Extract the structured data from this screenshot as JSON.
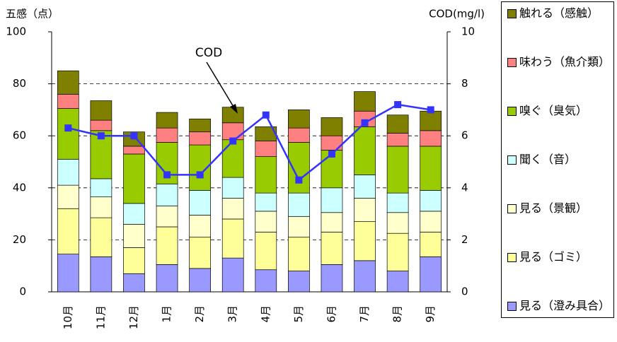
{
  "chart_data": {
    "type": "bar",
    "stacked": true,
    "ylabel": "五感（点）",
    "y2label": "COD(mg/l)",
    "categories": [
      "10月",
      "11月",
      "12月",
      "1月",
      "2月",
      "3月",
      "4月",
      "5月",
      "6月",
      "7月",
      "8月",
      "9月"
    ],
    "series": [
      {
        "name": "見る（澄み具合）",
        "color": "#9999ff",
        "values": [
          14.5,
          13.5,
          7,
          10.5,
          9,
          13,
          8.5,
          8,
          10.5,
          12,
          8,
          13.5
        ]
      },
      {
        "name": "見る（ゴミ）",
        "color": "#ffff99",
        "values": [
          17.5,
          15,
          10,
          14.5,
          12,
          15,
          14.5,
          13,
          12.5,
          15,
          14.5,
          9.5
        ]
      },
      {
        "name": "見る（景観）",
        "color": "#ffffcc",
        "values": [
          9,
          8,
          9,
          8,
          8.5,
          8,
          8,
          8,
          7.5,
          9,
          8,
          8
        ]
      },
      {
        "name": "聞く（音）",
        "color": "#ccffff",
        "values": [
          10,
          7,
          8,
          8.5,
          9.5,
          8,
          7,
          9,
          9.5,
          9,
          7.5,
          8
        ]
      },
      {
        "name": "嗅ぐ（臭気）",
        "color": "#99cc00",
        "values": [
          19.5,
          18.5,
          19,
          16,
          17.5,
          14.5,
          14,
          19.5,
          14.5,
          18.5,
          18,
          17
        ]
      },
      {
        "name": "味わう（魚介類）",
        "color": "#ff8080",
        "values": [
          5.5,
          4,
          3,
          5.5,
          5,
          6.5,
          6,
          5.5,
          5.5,
          6,
          5,
          6
        ]
      },
      {
        "name": "触れる（感触）",
        "color": "#808000",
        "values": [
          9,
          7.5,
          5.5,
          6,
          5,
          6,
          5.5,
          7,
          7,
          7.5,
          7,
          7.5
        ]
      },
      {
        "name": "COD",
        "type": "line",
        "axis": "y2",
        "color": "#3333ff",
        "values": [
          6.3,
          6.0,
          6.0,
          4.5,
          4.5,
          5.8,
          6.8,
          4.3,
          5.3,
          6.5,
          7.2,
          7.0
        ]
      }
    ],
    "annotation": "COD",
    "ylim": [
      0,
      100
    ],
    "yticks": [
      0,
      20,
      40,
      60,
      80,
      100
    ],
    "y2lim": [
      0,
      10
    ],
    "y2ticks": [
      0,
      2,
      4,
      6,
      8,
      10
    ],
    "grid": true,
    "legend": "right"
  }
}
